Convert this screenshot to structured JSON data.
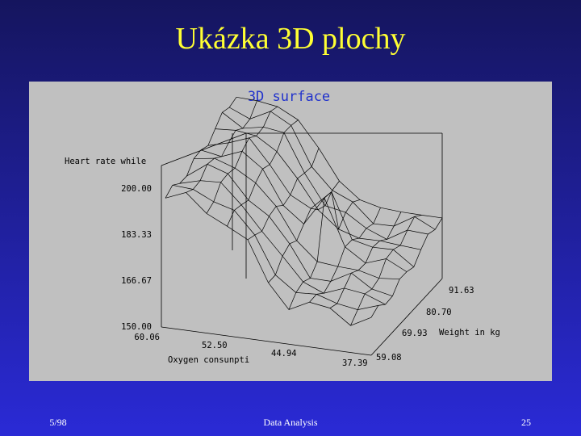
{
  "slide": {
    "title": "Ukázka 3D plochy",
    "footer_left": "5/98",
    "footer_center": "Data Analysis",
    "footer_right": "25"
  },
  "chart": {
    "title": "3D surface",
    "z_label": "Heart rate while",
    "x_label": "Oxygen consunpti",
    "y_label": "Weight in kg",
    "z_ticks": [
      "150.00",
      "166.67",
      "183.33",
      "200.00"
    ],
    "x_ticks": [
      "60.06",
      "52.50",
      "44.94",
      "37.39"
    ],
    "y_ticks": [
      "59.08",
      "69.93",
      "80.70",
      "91.63"
    ]
  }
}
